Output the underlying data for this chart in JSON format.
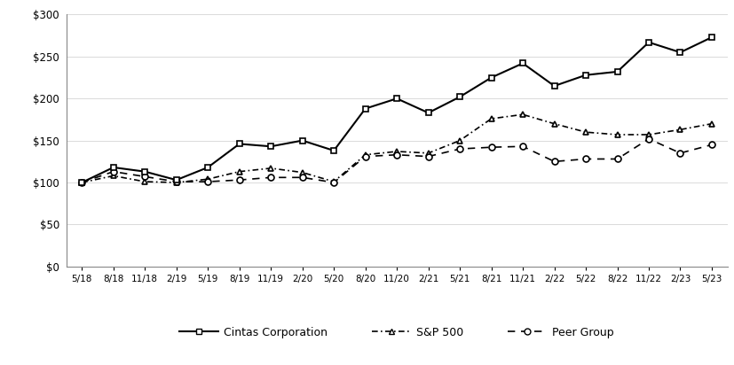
{
  "x_labels": [
    "5/18",
    "8/18",
    "11/18",
    "2/19",
    "5/19",
    "8/19",
    "11/19",
    "2/20",
    "5/20",
    "8/20",
    "11/20",
    "2/21",
    "5/21",
    "8/21",
    "11/21",
    "2/22",
    "5/22",
    "8/22",
    "11/22",
    "2/23",
    "5/23"
  ],
  "cintas": [
    100,
    118,
    113,
    103,
    118,
    146,
    143,
    150,
    138,
    188,
    200,
    183,
    202,
    225,
    242,
    215,
    228,
    232,
    267,
    255,
    273
  ],
  "sp500": [
    100,
    108,
    101,
    100,
    104,
    113,
    117,
    112,
    101,
    133,
    137,
    135,
    150,
    176,
    181,
    170,
    160,
    157,
    157,
    163,
    170
  ],
  "peer": [
    100,
    113,
    107,
    101,
    101,
    103,
    106,
    106,
    100,
    131,
    133,
    131,
    140,
    142,
    143,
    125,
    128,
    128,
    152,
    135,
    145
  ],
  "ylim": [
    0,
    300
  ],
  "yticks": [
    0,
    50,
    100,
    150,
    200,
    250,
    300
  ],
  "legend_cintas": "Cintas Corporation",
  "legend_sp500": "S&P 500",
  "legend_peer": "Peer Group",
  "line_color": "#000000",
  "bg_color": "#ffffff"
}
